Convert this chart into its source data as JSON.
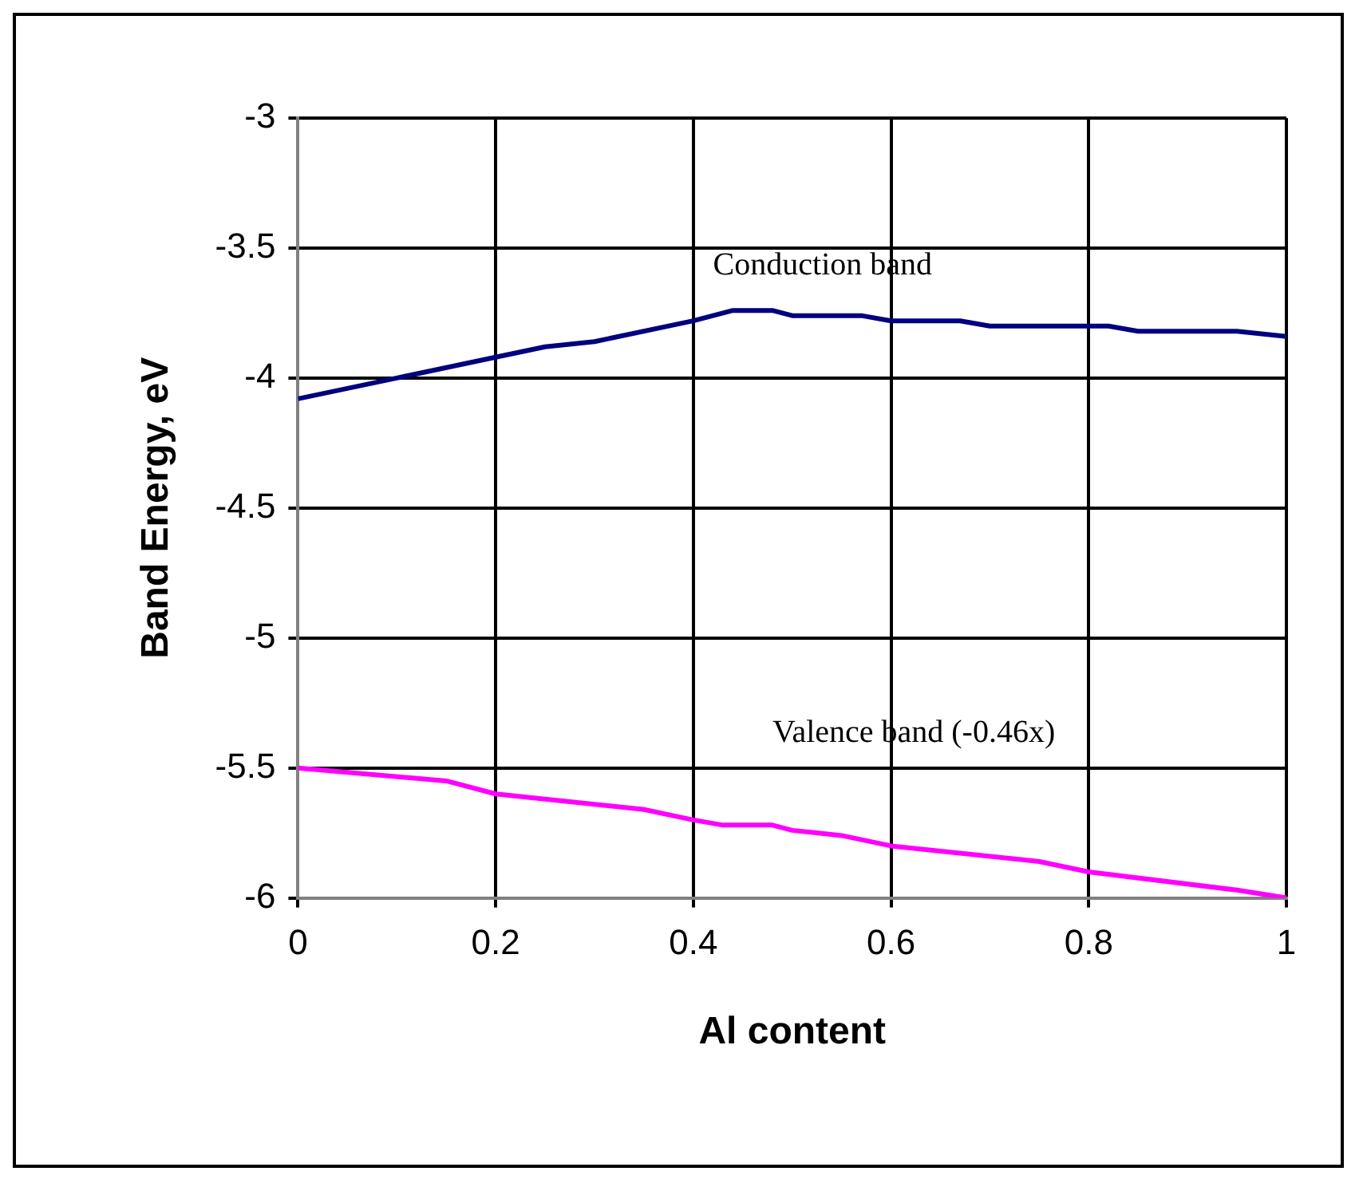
{
  "chart_data": {
    "type": "line",
    "xlabel": "Al content",
    "ylabel": "Band Energy, eV",
    "xlim": [
      0,
      1
    ],
    "xticks": [
      0,
      0.2,
      0.4,
      0.6,
      0.8,
      1
    ],
    "ylim": [
      -6,
      -3
    ],
    "yticks": [
      -6,
      -5.5,
      -5,
      -4.5,
      -4,
      -3.5,
      -3
    ],
    "grid": true,
    "legend": false,
    "marker": "none",
    "line_style": "solid",
    "series": [
      {
        "color": "#000080",
        "x": [
          0,
          0.1,
          0.2,
          0.25,
          0.3,
          0.4,
          0.42,
          0.44,
          0.48,
          0.5,
          0.57,
          0.6,
          0.67,
          0.7,
          0.82,
          0.85,
          0.95,
          1
        ],
        "values": [
          -4.08,
          -4.0,
          -3.92,
          -3.88,
          -3.86,
          -3.78,
          -3.76,
          -3.74,
          -3.74,
          -3.76,
          -3.76,
          -3.78,
          -3.78,
          -3.8,
          -3.8,
          -3.82,
          -3.82,
          -3.84
        ]
      },
      {
        "color": "#ff00ff",
        "x": [
          0,
          0.15,
          0.2,
          0.35,
          0.4,
          0.43,
          0.48,
          0.5,
          0.55,
          0.6,
          0.75,
          0.8,
          0.95,
          1
        ],
        "values": [
          -5.5,
          -5.55,
          -5.6,
          -5.66,
          -5.7,
          -5.72,
          -5.72,
          -5.74,
          -5.76,
          -5.8,
          -5.86,
          -5.9,
          -5.97,
          -6.0
        ]
      }
    ],
    "annotations": [
      "Conduction band",
      "Valence band (-0.46x)"
    ]
  }
}
